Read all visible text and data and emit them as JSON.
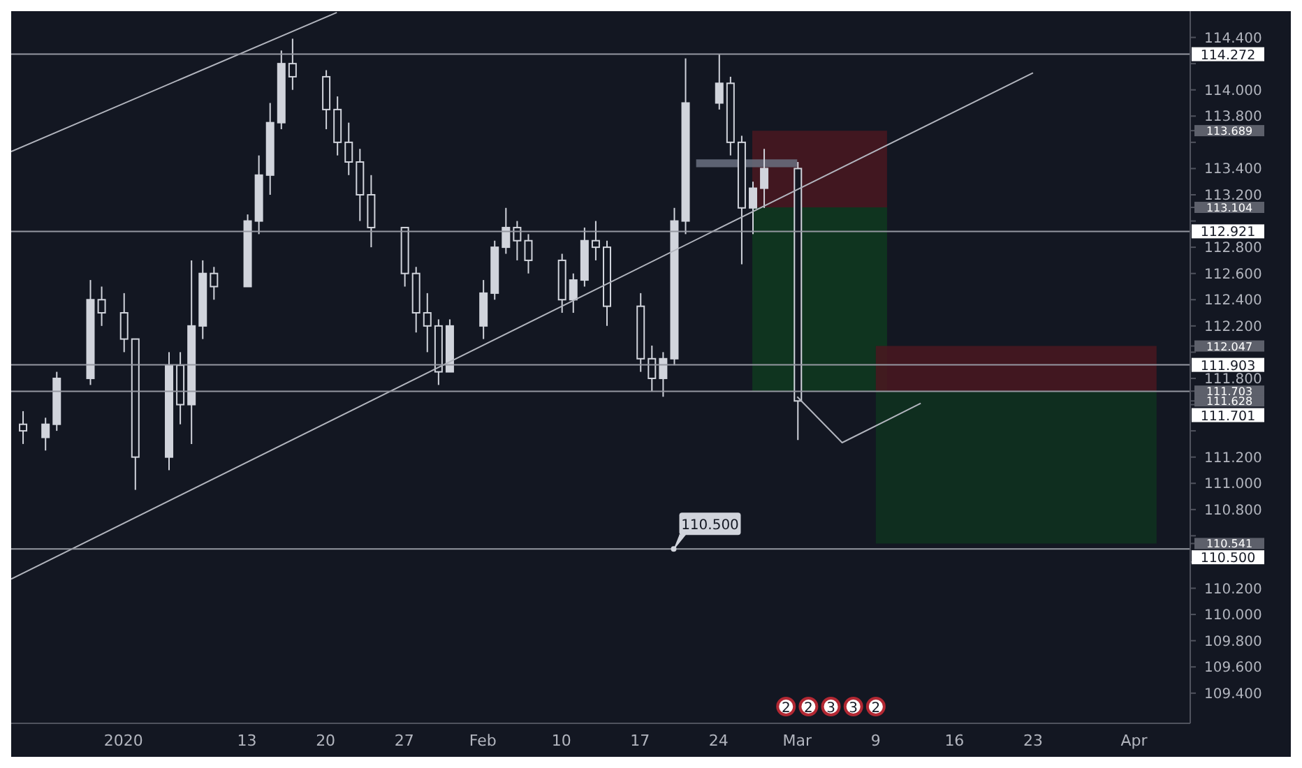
{
  "chart_data": {
    "type": "candlestick",
    "color": "#d1d4dc",
    "x": [
      "2019-12-24",
      "2019-12-26",
      "2019-12-27",
      "2019-12-30",
      "2019-12-31",
      "2020-01-02",
      "2020-01-03",
      "2020-01-06",
      "2020-01-07",
      "2020-01-08",
      "2020-01-09",
      "2020-01-10",
      "2020-01-13",
      "2020-01-14",
      "2020-01-15",
      "2020-01-16",
      "2020-01-17",
      "2020-01-20",
      "2020-01-21",
      "2020-01-22",
      "2020-01-23",
      "2020-01-24",
      "2020-01-27",
      "2020-01-28",
      "2020-01-29",
      "2020-01-30",
      "2020-01-31",
      "2020-02-03",
      "2020-02-04",
      "2020-02-05",
      "2020-02-06",
      "2020-02-07",
      "2020-02-10",
      "2020-02-11",
      "2020-02-12",
      "2020-02-13",
      "2020-02-14",
      "2020-02-17",
      "2020-02-18",
      "2020-02-19",
      "2020-02-20",
      "2020-02-21",
      "2020-02-24",
      "2020-02-25",
      "2020-02-26",
      "2020-02-27",
      "2020-02-28",
      "2020-03-02"
    ],
    "ohlc": [
      [
        111.45,
        111.55,
        111.3,
        111.4
      ],
      [
        111.35,
        111.5,
        111.25,
        111.45
      ],
      [
        111.45,
        111.85,
        111.4,
        111.8
      ],
      [
        111.8,
        112.55,
        111.75,
        112.4
      ],
      [
        112.4,
        112.5,
        112.2,
        112.3
      ],
      [
        112.3,
        112.45,
        112.0,
        112.1
      ],
      [
        112.1,
        112.1,
        110.95,
        111.2
      ],
      [
        111.2,
        112.0,
        111.1,
        111.9
      ],
      [
        111.9,
        112.0,
        111.45,
        111.6
      ],
      [
        111.6,
        112.7,
        111.3,
        112.2
      ],
      [
        112.2,
        112.7,
        112.1,
        112.6
      ],
      [
        112.6,
        112.65,
        112.4,
        112.5
      ],
      [
        112.5,
        113.05,
        112.5,
        113.0
      ],
      [
        113.0,
        113.5,
        112.9,
        113.35
      ],
      [
        113.35,
        113.9,
        113.2,
        113.75
      ],
      [
        113.75,
        114.3,
        113.7,
        114.2
      ],
      [
        114.2,
        114.39,
        114.0,
        114.1
      ],
      [
        114.1,
        114.15,
        113.7,
        113.85
      ],
      [
        113.85,
        113.95,
        113.5,
        113.6
      ],
      [
        113.6,
        113.75,
        113.35,
        113.45
      ],
      [
        113.45,
        113.55,
        113.0,
        113.2
      ],
      [
        113.2,
        113.35,
        112.8,
        112.95
      ],
      [
        112.95,
        112.95,
        112.5,
        112.6
      ],
      [
        112.6,
        112.65,
        112.15,
        112.3
      ],
      [
        112.3,
        112.45,
        112.0,
        112.2
      ],
      [
        112.2,
        112.25,
        111.75,
        111.85
      ],
      [
        111.85,
        112.25,
        111.85,
        112.2
      ],
      [
        112.2,
        112.55,
        112.1,
        112.45
      ],
      [
        112.45,
        112.85,
        112.4,
        112.8
      ],
      [
        112.8,
        113.1,
        112.75,
        112.95
      ],
      [
        112.95,
        113.0,
        112.7,
        112.85
      ],
      [
        112.85,
        112.9,
        112.6,
        112.7
      ],
      [
        112.7,
        112.75,
        112.3,
        112.4
      ],
      [
        112.4,
        112.6,
        112.3,
        112.55
      ],
      [
        112.55,
        112.95,
        112.5,
        112.85
      ],
      [
        112.85,
        113.0,
        112.7,
        112.8
      ],
      [
        112.8,
        112.85,
        112.2,
        112.35
      ],
      [
        112.35,
        112.45,
        111.85,
        111.95
      ],
      [
        111.95,
        112.05,
        111.7,
        111.8
      ],
      [
        111.8,
        112.0,
        111.66,
        111.95
      ],
      [
        111.95,
        113.1,
        111.9,
        113.0
      ],
      [
        113.0,
        114.24,
        112.9,
        113.9
      ],
      [
        113.9,
        114.27,
        113.85,
        114.05
      ],
      [
        114.05,
        114.1,
        113.5,
        113.6
      ],
      [
        113.6,
        113.65,
        112.67,
        113.1
      ],
      [
        113.1,
        113.3,
        112.9,
        113.25
      ],
      [
        113.25,
        113.55,
        113.1,
        113.4
      ],
      [
        113.4,
        113.45,
        111.33,
        111.628
      ]
    ],
    "series": [
      {
        "type": "area",
        "color": "#4a1820",
        "x": [
          "2020-02-27",
          "2020-03-10"
        ],
        "values": [
          null,
          null
        ],
        "lower": [
          113.104,
          113.104
        ],
        "upper": [
          113.689,
          113.689
        ]
      },
      {
        "type": "area",
        "color": "#0f3a1e",
        "x": [
          "2020-02-27",
          "2020-03-10"
        ],
        "values": [
          null,
          null
        ],
        "lower": [
          111.701,
          111.701
        ],
        "upper": [
          113.104,
          113.104
        ]
      },
      {
        "type": "area",
        "color": "#4a1820",
        "x": [
          "2020-03-09",
          "2020-04-03"
        ],
        "values": [
          null,
          null
        ],
        "lower": [
          111.703,
          111.703
        ],
        "upper": [
          112.047,
          112.047
        ]
      },
      {
        "type": "area",
        "color": "#0f331e",
        "x": [
          "2020-03-09",
          "2020-04-03"
        ],
        "values": [
          null,
          null
        ],
        "lower": [
          110.541,
          110.541
        ],
        "upper": [
          111.703,
          111.703
        ]
      },
      {
        "type": "area",
        "color": "#6a7080",
        "x": [
          "2020-02-22",
          "2020-03-02"
        ],
        "values": [
          null,
          null
        ],
        "lower": [
          113.41,
          113.41
        ],
        "upper": [
          113.47,
          113.47
        ]
      },
      {
        "type": "line",
        "color": "#b2b5be",
        "x": [
          "2019-12-23",
          "2020-01-21"
        ],
        "values": [
          113.53,
          114.59
        ]
      },
      {
        "type": "line",
        "color": "#b2b5be",
        "x": [
          "2019-12-23",
          "2020-03-23"
        ],
        "values": [
          110.27,
          114.13
        ]
      },
      {
        "type": "line",
        "color": "#b2b5be",
        "x": [
          "2020-03-02",
          "2020-03-06",
          "2020-03-13"
        ],
        "values": [
          111.66,
          111.31,
          111.61
        ]
      }
    ],
    "xlim": [
      "2019-12-23",
      "2020-04-06"
    ],
    "ylim": [
      109.17,
      114.6
    ],
    "xticks": [
      {
        "value": "2020-01-02",
        "label": "2020"
      },
      {
        "value": "2020-01-13",
        "label": "13"
      },
      {
        "value": "2020-01-20",
        "label": "20"
      },
      {
        "value": "2020-01-27",
        "label": "27"
      },
      {
        "value": "2020-02-03",
        "label": "Feb"
      },
      {
        "value": "2020-02-10",
        "label": "10"
      },
      {
        "value": "2020-02-17",
        "label": "17"
      },
      {
        "value": "2020-02-24",
        "label": "24"
      },
      {
        "value": "2020-03-02",
        "label": "Mar"
      },
      {
        "value": "2020-03-09",
        "label": "9"
      },
      {
        "value": "2020-03-16",
        "label": "16"
      },
      {
        "value": "2020-03-23",
        "label": "23"
      },
      {
        "value": "2020-04-01",
        "label": "Apr"
      }
    ],
    "yticks": [
      {
        "value": 109.4,
        "label": "109.400"
      },
      {
        "value": 109.6,
        "label": "109.600"
      },
      {
        "value": 109.8,
        "label": "109.800"
      },
      {
        "value": 110.0,
        "label": "110.000"
      },
      {
        "value": 110.2,
        "label": "110.200"
      },
      {
        "value": 110.4,
        "label": null
      },
      {
        "value": 110.6,
        "label": null
      },
      {
        "value": 110.8,
        "label": "110.800"
      },
      {
        "value": 111.0,
        "label": "111.000"
      },
      {
        "value": 111.2,
        "label": "111.200"
      },
      {
        "value": 111.4,
        "label": null
      },
      {
        "value": 111.6,
        "label": null
      },
      {
        "value": 111.8,
        "label": "111.800"
      },
      {
        "value": 112.0,
        "label": null
      },
      {
        "value": 112.2,
        "label": "112.200"
      },
      {
        "value": 112.4,
        "label": "112.400"
      },
      {
        "value": 112.6,
        "label": "112.600"
      },
      {
        "value": 112.8,
        "label": "112.800"
      },
      {
        "value": 113.0,
        "label": null
      },
      {
        "value": 113.2,
        "label": "113.200"
      },
      {
        "value": 113.4,
        "label": "113.400"
      },
      {
        "value": 113.6,
        "label": null
      },
      {
        "value": 113.8,
        "label": "113.800"
      },
      {
        "value": 114.0,
        "label": "114.000"
      },
      {
        "value": 114.2,
        "label": null
      },
      {
        "value": 114.4,
        "label": "114.400"
      },
      {
        "value": 113.689,
        "label": "113.689"
      },
      {
        "value": 113.104,
        "label": "113.104"
      },
      {
        "value": 112.047,
        "label": "112.047"
      },
      {
        "value": 111.703,
        "label": "111.703"
      },
      {
        "value": 111.628,
        "label": "111.628"
      },
      {
        "value": 110.541,
        "label": "110.541"
      }
    ],
    "grid": false,
    "legend": false,
    "ref_lines": [
      {
        "axis": "y",
        "value": 114.272,
        "label": "114.272",
        "color": "#9598a1"
      },
      {
        "axis": "y",
        "value": 112.921,
        "label": "112.921",
        "color": "#9598a1"
      },
      {
        "axis": "y",
        "value": 111.903,
        "label": "111.903",
        "color": "#9598a1"
      },
      {
        "axis": "y",
        "value": 111.701,
        "label": "111.701",
        "color": "#9598a1"
      },
      {
        "axis": "y",
        "value": 110.5,
        "label": "110.500",
        "color": "#9598a1"
      }
    ],
    "annotations": [
      {
        "text": "110.500",
        "x": "2020-02-20",
        "y": 110.5
      },
      {
        "text": "2",
        "x": "2020-03-01"
      },
      {
        "text": "2",
        "x": "2020-03-03"
      },
      {
        "text": "3",
        "x": "2020-03-05"
      },
      {
        "text": "3",
        "x": "2020-03-07"
      },
      {
        "text": "2",
        "x": "2020-03-09"
      }
    ]
  }
}
